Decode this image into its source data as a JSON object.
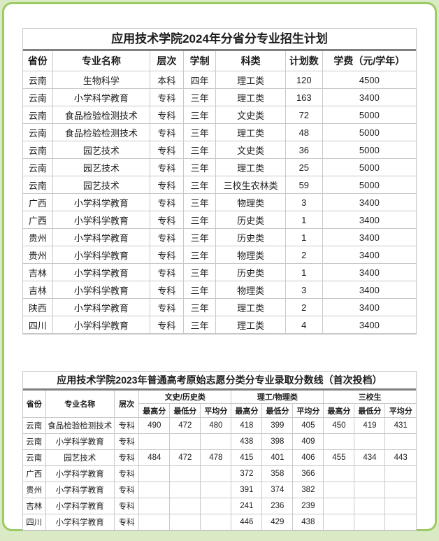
{
  "colors": {
    "page_bg": "#d9eac5",
    "card_border": "#9ccb63",
    "card_bg": "#ffffff",
    "table_border": "#c9c9c9",
    "text": "#1c1c1c"
  },
  "plan_table": {
    "title": "应用技术学院2024年分省分专业招生计划",
    "headers": [
      "省份",
      "专业名称",
      "层次",
      "学制",
      "科类",
      "计划数",
      "学费（元/学年）"
    ],
    "rows": [
      [
        "云南",
        "生物科学",
        "本科",
        "四年",
        "理工类",
        "120",
        "4500"
      ],
      [
        "云南",
        "小学科学教育",
        "专科",
        "三年",
        "理工类",
        "163",
        "3400"
      ],
      [
        "云南",
        "食品检验检测技术",
        "专科",
        "三年",
        "文史类",
        "72",
        "5000"
      ],
      [
        "云南",
        "食品检验检测技术",
        "专科",
        "三年",
        "理工类",
        "48",
        "5000"
      ],
      [
        "云南",
        "园艺技术",
        "专科",
        "三年",
        "文史类",
        "36",
        "5000"
      ],
      [
        "云南",
        "园艺技术",
        "专科",
        "三年",
        "理工类",
        "25",
        "5000"
      ],
      [
        "云南",
        "园艺技术",
        "专科",
        "三年",
        "三校生农林类",
        "59",
        "5000"
      ],
      [
        "广西",
        "小学科学教育",
        "专科",
        "三年",
        "物理类",
        "3",
        "3400"
      ],
      [
        "广西",
        "小学科学教育",
        "专科",
        "三年",
        "历史类",
        "1",
        "3400"
      ],
      [
        "贵州",
        "小学科学教育",
        "专科",
        "三年",
        "历史类",
        "1",
        "3400"
      ],
      [
        "贵州",
        "小学科学教育",
        "专科",
        "三年",
        "物理类",
        "2",
        "3400"
      ],
      [
        "吉林",
        "小学科学教育",
        "专科",
        "三年",
        "历史类",
        "1",
        "3400"
      ],
      [
        "吉林",
        "小学科学教育",
        "专科",
        "三年",
        "物理类",
        "3",
        "3400"
      ],
      [
        "陕西",
        "小学科学教育",
        "专科",
        "三年",
        "理工类",
        "2",
        "3400"
      ],
      [
        "四川",
        "小学科学教育",
        "专科",
        "三年",
        "理工类",
        "4",
        "3400"
      ]
    ]
  },
  "score_table": {
    "title": "应用技术学院2023年普通高考原始志愿分类分专业录取分数线（首次投档）",
    "fixed_headers": [
      "省份",
      "专业名称",
      "层次"
    ],
    "group_headers": [
      "文史/历史类",
      "理工/物理类",
      "三校生"
    ],
    "sub_headers": [
      "最高分",
      "最低分",
      "平均分"
    ],
    "rows": [
      [
        "云南",
        "食品检验检测技术",
        "专科",
        "490",
        "472",
        "480",
        "418",
        "399",
        "405",
        "450",
        "419",
        "431"
      ],
      [
        "云南",
        "小学科学教育",
        "专科",
        "",
        "",
        "",
        "438",
        "398",
        "409",
        "",
        "",
        ""
      ],
      [
        "云南",
        "园艺技术",
        "专科",
        "484",
        "472",
        "478",
        "415",
        "401",
        "406",
        "455",
        "434",
        "443"
      ],
      [
        "广西",
        "小学科学教育",
        "专科",
        "",
        "",
        "",
        "372",
        "358",
        "366",
        "",
        "",
        ""
      ],
      [
        "贵州",
        "小学科学教育",
        "专科",
        "",
        "",
        "",
        "391",
        "374",
        "382",
        "",
        "",
        ""
      ],
      [
        "吉林",
        "小学科学教育",
        "专科",
        "",
        "",
        "",
        "241",
        "236",
        "239",
        "",
        "",
        ""
      ],
      [
        "四川",
        "小学科学教育",
        "专科",
        "",
        "",
        "",
        "446",
        "429",
        "438",
        "",
        "",
        ""
      ]
    ]
  }
}
